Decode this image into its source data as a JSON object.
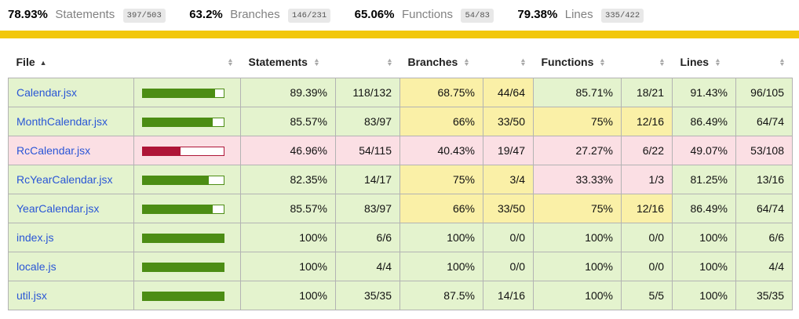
{
  "summary": {
    "metrics": [
      {
        "pct": "78.93%",
        "label": "Statements",
        "fraction": "397/503"
      },
      {
        "pct": "63.2%",
        "label": "Branches",
        "fraction": "146/231"
      },
      {
        "pct": "65.06%",
        "label": "Functions",
        "fraction": "54/83"
      },
      {
        "pct": "79.38%",
        "label": "Lines",
        "fraction": "335/422"
      }
    ],
    "overall_level": "medium"
  },
  "table": {
    "headers": {
      "file": "File",
      "statements": "Statements",
      "branches": "Branches",
      "functions": "Functions",
      "lines": "Lines"
    },
    "sort": {
      "column": "file",
      "direction": "asc",
      "active_icon": "▲",
      "inactive_icon_up": "▲",
      "inactive_icon_down": "▼"
    },
    "rows": [
      {
        "file": "Calendar.jsx",
        "row_level": "high",
        "bar_pct": 89,
        "bar_level": "high",
        "statements": {
          "pct": "89.39%",
          "raw": "118/132",
          "level": "high"
        },
        "branches": {
          "pct": "68.75%",
          "raw": "44/64",
          "level": "medium"
        },
        "functions": {
          "pct": "85.71%",
          "raw": "18/21",
          "level": "high"
        },
        "lines": {
          "pct": "91.43%",
          "raw": "96/105",
          "level": "high"
        }
      },
      {
        "file": "MonthCalendar.jsx",
        "row_level": "high",
        "bar_pct": 86,
        "bar_level": "high",
        "statements": {
          "pct": "85.57%",
          "raw": "83/97",
          "level": "high"
        },
        "branches": {
          "pct": "66%",
          "raw": "33/50",
          "level": "medium"
        },
        "functions": {
          "pct": "75%",
          "raw": "12/16",
          "level": "medium"
        },
        "lines": {
          "pct": "86.49%",
          "raw": "64/74",
          "level": "high"
        }
      },
      {
        "file": "RcCalendar.jsx",
        "row_level": "low",
        "bar_pct": 47,
        "bar_level": "low",
        "statements": {
          "pct": "46.96%",
          "raw": "54/115",
          "level": "low"
        },
        "branches": {
          "pct": "40.43%",
          "raw": "19/47",
          "level": "low"
        },
        "functions": {
          "pct": "27.27%",
          "raw": "6/22",
          "level": "low"
        },
        "lines": {
          "pct": "49.07%",
          "raw": "53/108",
          "level": "low"
        }
      },
      {
        "file": "RcYearCalendar.jsx",
        "row_level": "high",
        "bar_pct": 82,
        "bar_level": "high",
        "statements": {
          "pct": "82.35%",
          "raw": "14/17",
          "level": "high"
        },
        "branches": {
          "pct": "75%",
          "raw": "3/4",
          "level": "medium"
        },
        "functions": {
          "pct": "33.33%",
          "raw": "1/3",
          "level": "low"
        },
        "lines": {
          "pct": "81.25%",
          "raw": "13/16",
          "level": "high"
        }
      },
      {
        "file": "YearCalendar.jsx",
        "row_level": "high",
        "bar_pct": 86,
        "bar_level": "high",
        "statements": {
          "pct": "85.57%",
          "raw": "83/97",
          "level": "high"
        },
        "branches": {
          "pct": "66%",
          "raw": "33/50",
          "level": "medium"
        },
        "functions": {
          "pct": "75%",
          "raw": "12/16",
          "level": "medium"
        },
        "lines": {
          "pct": "86.49%",
          "raw": "64/74",
          "level": "high"
        }
      },
      {
        "file": "index.js",
        "row_level": "high",
        "bar_pct": 100,
        "bar_level": "high",
        "statements": {
          "pct": "100%",
          "raw": "6/6",
          "level": "high"
        },
        "branches": {
          "pct": "100%",
          "raw": "0/0",
          "level": "high"
        },
        "functions": {
          "pct": "100%",
          "raw": "0/0",
          "level": "high"
        },
        "lines": {
          "pct": "100%",
          "raw": "6/6",
          "level": "high"
        }
      },
      {
        "file": "locale.js",
        "row_level": "high",
        "bar_pct": 100,
        "bar_level": "high",
        "statements": {
          "pct": "100%",
          "raw": "4/4",
          "level": "high"
        },
        "branches": {
          "pct": "100%",
          "raw": "0/0",
          "level": "high"
        },
        "functions": {
          "pct": "100%",
          "raw": "0/0",
          "level": "high"
        },
        "lines": {
          "pct": "100%",
          "raw": "4/4",
          "level": "high"
        }
      },
      {
        "file": "util.jsx",
        "row_level": "high",
        "bar_pct": 100,
        "bar_level": "high",
        "statements": {
          "pct": "100%",
          "raw": "35/35",
          "level": "high"
        },
        "branches": {
          "pct": "87.5%",
          "raw": "14/16",
          "level": "high"
        },
        "functions": {
          "pct": "100%",
          "raw": "5/5",
          "level": "high"
        },
        "lines": {
          "pct": "100%",
          "raw": "35/35",
          "level": "high"
        }
      }
    ]
  },
  "colors": {
    "status_gold": "#f2c70b",
    "bg_high": "#e4f3ce",
    "bg_medium": "#faf0a7",
    "bg_low": "#fbdfe4",
    "fill_high": "#4c8d14",
    "fill_low": "#ae1537",
    "fraction_badge_bg": "#e8e8e8",
    "link_blue": "#2a56d6",
    "border_gray": "#b3b3b3"
  }
}
